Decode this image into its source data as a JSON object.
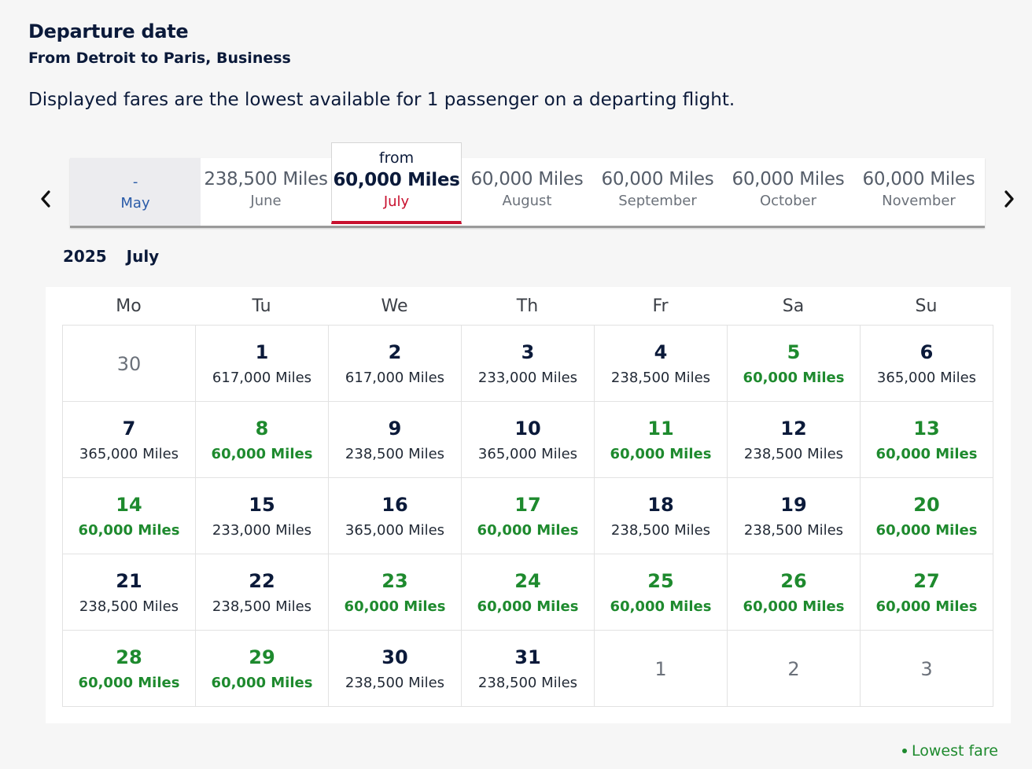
{
  "header": {
    "title": "Departure date",
    "subtitle": "From Detroit to Paris, Business",
    "description": "Displayed fares are the lowest available for 1 passenger on a departing flight."
  },
  "months": [
    {
      "fare": "-",
      "name": "May",
      "state": "disabled"
    },
    {
      "fare": "238,500 Miles",
      "name": "June",
      "state": "normal"
    },
    {
      "prefix": "from",
      "fare": "60,000 Miles",
      "name": "July",
      "state": "selected"
    },
    {
      "fare": "60,000 Miles",
      "name": "August",
      "state": "normal"
    },
    {
      "fare": "60,000 Miles",
      "name": "September",
      "state": "normal"
    },
    {
      "fare": "60,000 Miles",
      "name": "October",
      "state": "normal"
    },
    {
      "fare": "60,000 Miles",
      "name": "November",
      "state": "normal"
    }
  ],
  "calendar": {
    "year": "2025",
    "month": "July",
    "weekdays": [
      "Mo",
      "Tu",
      "We",
      "Th",
      "Fr",
      "Sa",
      "Su"
    ],
    "weeks": [
      [
        {
          "day": "30",
          "out": true
        },
        {
          "day": "1",
          "miles": "617,000 Miles"
        },
        {
          "day": "2",
          "miles": "617,000 Miles"
        },
        {
          "day": "3",
          "miles": "233,000 Miles"
        },
        {
          "day": "4",
          "miles": "238,500 Miles"
        },
        {
          "day": "5",
          "miles": "60,000 Miles",
          "low": true
        },
        {
          "day": "6",
          "miles": "365,000 Miles"
        }
      ],
      [
        {
          "day": "7",
          "miles": "365,000 Miles"
        },
        {
          "day": "8",
          "miles": "60,000 Miles",
          "low": true
        },
        {
          "day": "9",
          "miles": "238,500 Miles"
        },
        {
          "day": "10",
          "miles": "365,000 Miles"
        },
        {
          "day": "11",
          "miles": "60,000 Miles",
          "low": true
        },
        {
          "day": "12",
          "miles": "238,500 Miles"
        },
        {
          "day": "13",
          "miles": "60,000 Miles",
          "low": true
        }
      ],
      [
        {
          "day": "14",
          "miles": "60,000 Miles",
          "low": true
        },
        {
          "day": "15",
          "miles": "233,000 Miles"
        },
        {
          "day": "16",
          "miles": "365,000 Miles"
        },
        {
          "day": "17",
          "miles": "60,000 Miles",
          "low": true
        },
        {
          "day": "18",
          "miles": "238,500 Miles"
        },
        {
          "day": "19",
          "miles": "238,500 Miles"
        },
        {
          "day": "20",
          "miles": "60,000 Miles",
          "low": true
        }
      ],
      [
        {
          "day": "21",
          "miles": "238,500 Miles"
        },
        {
          "day": "22",
          "miles": "238,500 Miles"
        },
        {
          "day": "23",
          "miles": "60,000 Miles",
          "low": true
        },
        {
          "day": "24",
          "miles": "60,000 Miles",
          "low": true
        },
        {
          "day": "25",
          "miles": "60,000 Miles",
          "low": true
        },
        {
          "day": "26",
          "miles": "60,000 Miles",
          "low": true
        },
        {
          "day": "27",
          "miles": "60,000 Miles",
          "low": true
        }
      ],
      [
        {
          "day": "28",
          "miles": "60,000 Miles",
          "low": true
        },
        {
          "day": "29",
          "miles": "60,000 Miles",
          "low": true
        },
        {
          "day": "30",
          "miles": "238,500 Miles"
        },
        {
          "day": "31",
          "miles": "238,500 Miles"
        },
        {
          "day": "1",
          "out": true
        },
        {
          "day": "2",
          "out": true
        },
        {
          "day": "3",
          "out": true
        }
      ]
    ]
  },
  "legend": {
    "lowest_fare_label": "Lowest fare"
  },
  "icons": {
    "prev": "chevron-left-icon",
    "next": "chevron-right-icon",
    "legend_dot": "dot-icon"
  },
  "colors": {
    "lowest": "#1e8a2e",
    "selected_accent": "#c8102e",
    "link_blue": "#2a5ba8",
    "text_dark": "#0b1a3a"
  }
}
